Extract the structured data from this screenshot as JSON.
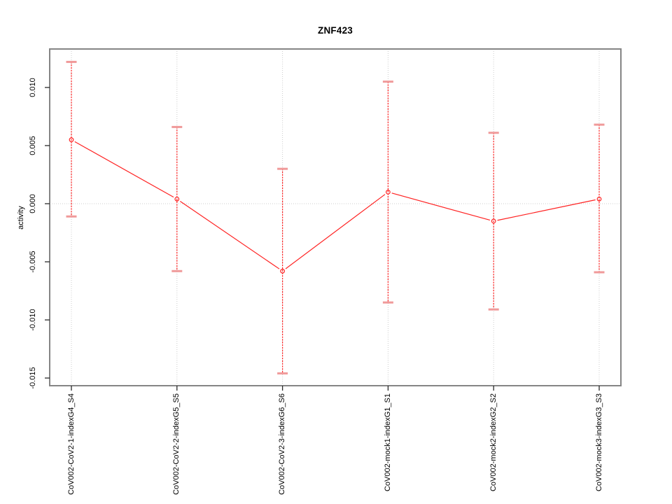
{
  "chart_data": {
    "type": "line",
    "title": "ZNF423",
    "xlabel": "",
    "ylabel": "activity",
    "categories": [
      "CoV002-CoV2-1-indexG4_S4",
      "CoV002-CoV2-2-indexG5_S5",
      "CoV002-CoV2-3-indexG6_S6",
      "CoV002-mock1-indexG1_S1",
      "CoV002-mock2-indexG2_S2",
      "CoV002-mock3-indexG3_S3"
    ],
    "series": [
      {
        "name": "activity",
        "values": [
          0.0055,
          0.0004,
          -0.0058,
          0.001,
          -0.0015,
          0.0004
        ],
        "error_high": [
          0.0122,
          0.0066,
          0.003,
          0.0105,
          0.0061,
          0.0068
        ],
        "error_low": [
          -0.0011,
          -0.0058,
          -0.0146,
          -0.0085,
          -0.0091,
          -0.0059
        ]
      }
    ],
    "y_ticks": [
      0.01,
      0.005,
      0.0,
      -0.005,
      -0.01,
      -0.015
    ],
    "y_tick_labels": [
      "0.010",
      "0.005",
      "0.000",
      "-0.005",
      "-0.010",
      "-0.015"
    ],
    "ylim": [
      -0.01566,
      0.01331
    ],
    "grid": "dotted vertical line at each category and dotted horizontal line at y=0",
    "legend": "none",
    "marker": "open-circle",
    "error_bar_style": "dashed vertical with horizontal caps",
    "colors": {
      "series": "#ff2222",
      "cap": "#f09a9a",
      "grid": "#cccccc",
      "border": "#858585",
      "tick": "#2b2b2b",
      "text": "#000000",
      "background": "#ffffff"
    }
  }
}
